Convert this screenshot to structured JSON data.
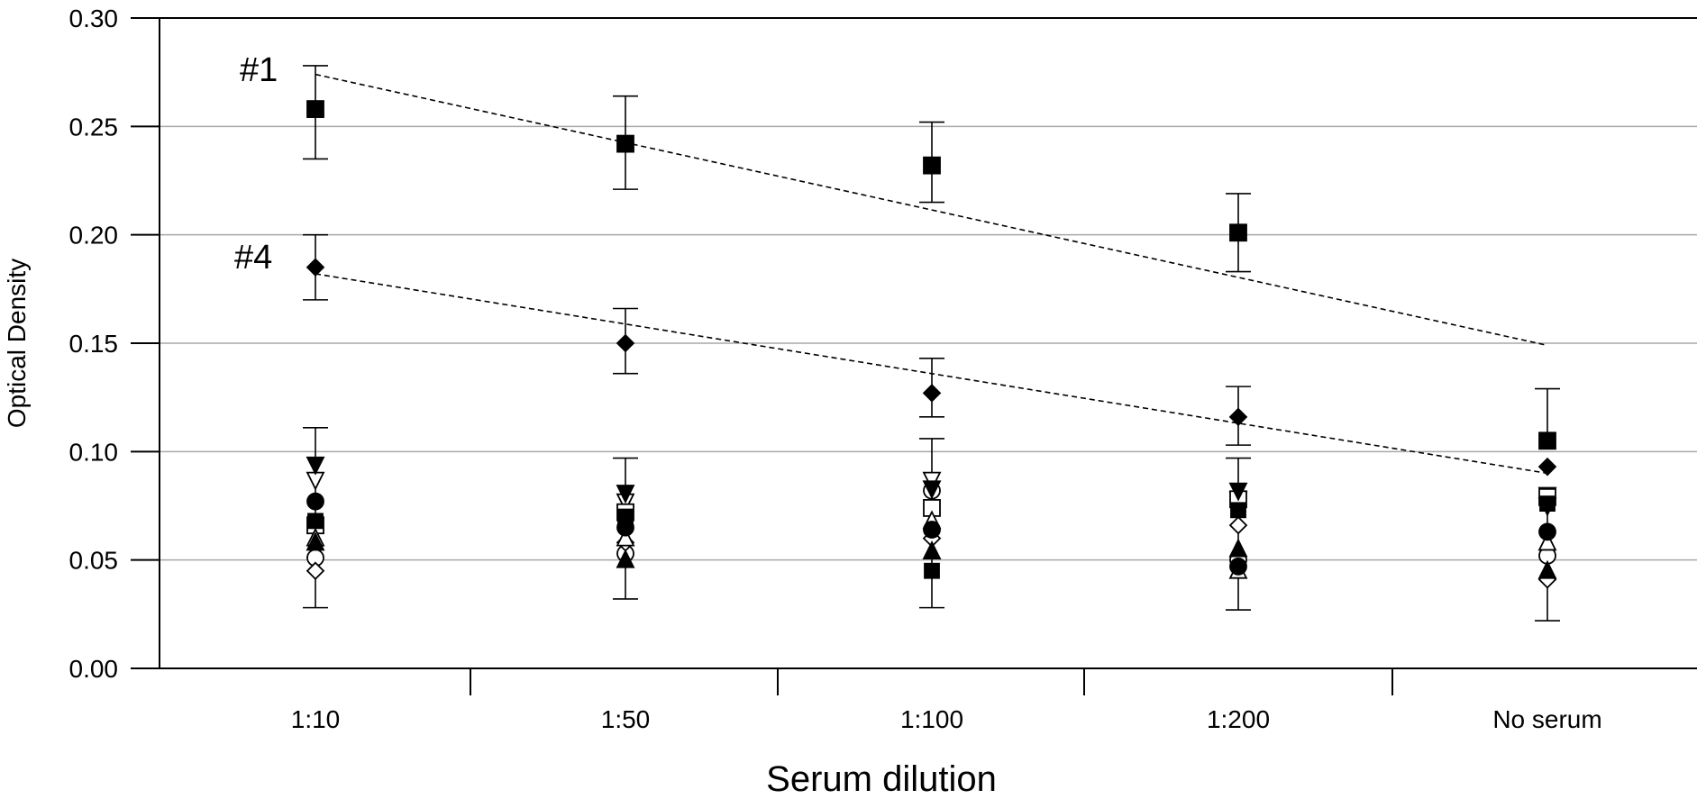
{
  "chart_data": {
    "type": "scatter",
    "xlabel": "Serum dilution",
    "ylabel": "Optical Density",
    "categories": [
      "1:10",
      "1:50",
      "1:100",
      "1:200",
      "No serum"
    ],
    "ylim": [
      0,
      0.3
    ],
    "yticks": [
      "0.00",
      "0.05",
      "0.10",
      "0.15",
      "0.20",
      "0.25",
      "0.30"
    ],
    "grid": true,
    "annotations": [
      "#1",
      "#4"
    ],
    "series": [
      {
        "marker": "square-filled",
        "values": [
          0.258,
          0.242,
          0.232,
          0.201,
          0.105
        ],
        "error_low": [
          0.235,
          0.221,
          0.215,
          0.183,
          null
        ],
        "error_high": [
          0.278,
          0.264,
          0.252,
          0.219,
          0.129
        ]
      },
      {
        "marker": "diamond-filled",
        "values": [
          0.185,
          0.15,
          0.127,
          0.116,
          0.093
        ],
        "error_low": [
          0.17,
          0.136,
          0.116,
          0.103,
          null
        ],
        "error_high": [
          0.2,
          0.166,
          0.143,
          0.13,
          null
        ]
      },
      {
        "marker": "triangle-down-filled",
        "values": [
          0.094,
          0.081,
          0.083,
          0.082,
          0.075
        ]
      },
      {
        "marker": "triangle-down-open",
        "values": [
          0.087,
          0.077,
          0.087,
          0.078,
          0.08
        ]
      },
      {
        "marker": "circle-filled",
        "values": [
          0.077,
          0.065,
          0.064,
          0.047,
          0.063
        ]
      },
      {
        "marker": "square-open",
        "values": [
          0.066,
          0.072,
          0.074,
          0.078,
          0.079
        ]
      },
      {
        "marker": "triangle-up-filled",
        "values": [
          0.058,
          0.05,
          0.054,
          0.055,
          0.045
        ]
      },
      {
        "marker": "circle-open",
        "values": [
          0.051,
          0.053,
          0.082,
          0.05,
          0.052
        ]
      },
      {
        "marker": "diamond-open",
        "values": [
          0.045,
          0.058,
          0.06,
          0.066,
          0.041
        ]
      },
      {
        "marker": "triangle-up-open",
        "values": [
          0.06,
          0.06,
          0.068,
          0.045,
          0.058
        ]
      },
      {
        "marker": "square-filled-small",
        "values": [
          0.068,
          0.07,
          0.045,
          0.073,
          0.076
        ],
        "error_low": [
          0.028,
          0.032,
          0.028,
          0.027,
          0.022
        ],
        "error_high": [
          0.111,
          0.097,
          0.106,
          0.097,
          null
        ]
      }
    ],
    "trendlines": [
      {
        "label": "#1",
        "from": [
          0,
          0.274
        ],
        "to": [
          4,
          0.149
        ]
      },
      {
        "label": "#4",
        "from": [
          0,
          0.182
        ],
        "to": [
          4,
          0.09
        ]
      }
    ]
  }
}
